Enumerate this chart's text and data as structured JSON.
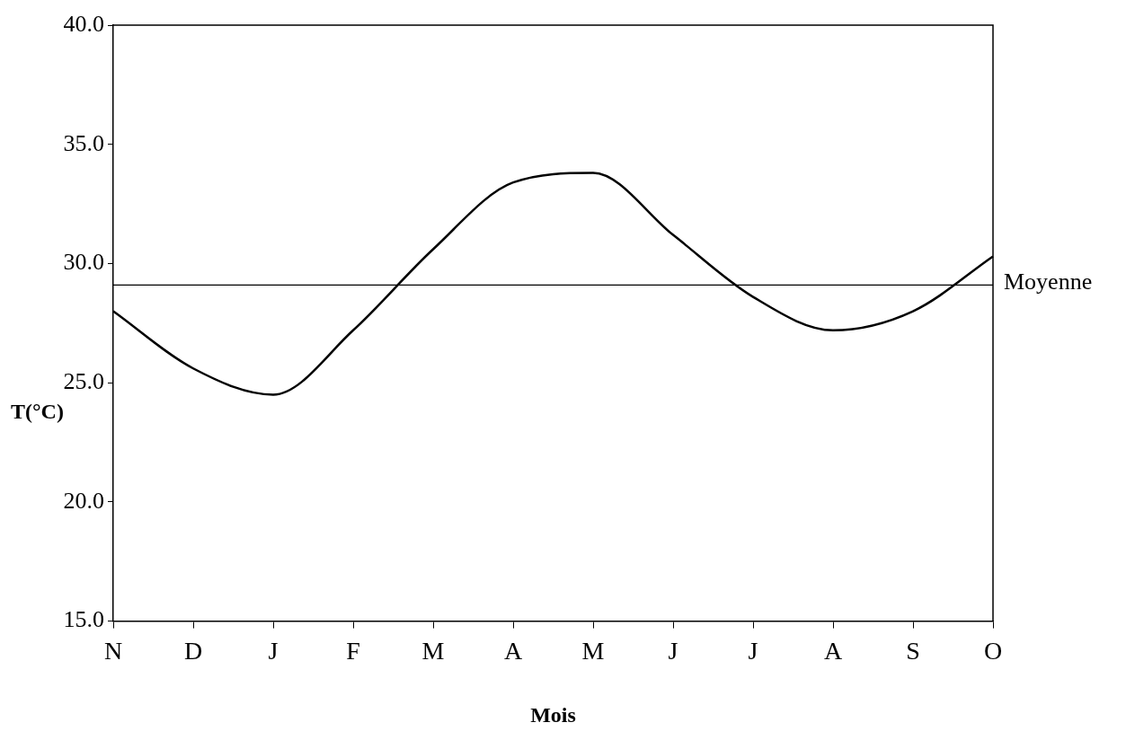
{
  "chart_data": {
    "type": "line",
    "xlabel": "Mois",
    "ylabel": "T(°C)",
    "categories": [
      "N",
      "D",
      "J",
      "F",
      "M",
      "A",
      "M",
      "J",
      "J",
      "A",
      "S",
      "O"
    ],
    "series": [
      {
        "color": "#000000",
        "values": [
          28.0,
          25.6,
          24.5,
          27.2,
          30.6,
          33.4,
          33.8,
          31.2,
          28.6,
          27.2,
          28.0,
          30.3
        ]
      }
    ],
    "ylim": [
      15,
      40
    ],
    "yticks": [
      {
        "value": 15,
        "label": "15.0"
      },
      {
        "value": 20,
        "label": "20.0"
      },
      {
        "value": 25,
        "label": "25.0"
      },
      {
        "value": 30,
        "label": "30.0"
      },
      {
        "value": 35,
        "label": "35.0"
      },
      {
        "value": 40,
        "label": "40.0"
      }
    ],
    "ref_lines": [
      {
        "axis": "y",
        "value": 29.1,
        "label": "Moyenne",
        "color": "#000000"
      }
    ],
    "marker": "none",
    "line_style": "solid",
    "legend": false
  }
}
